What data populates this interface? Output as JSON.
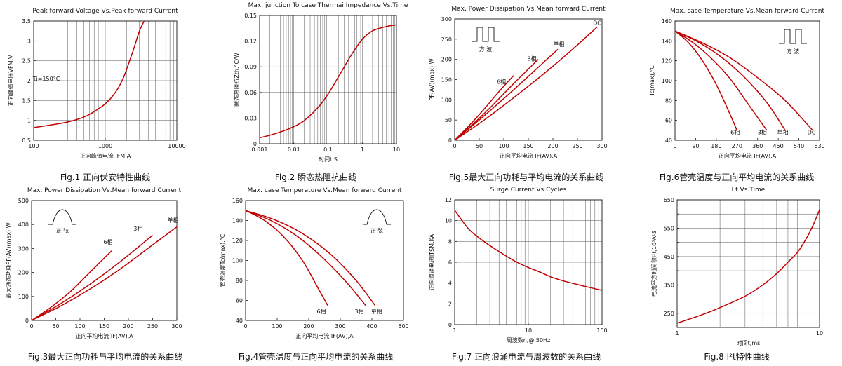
{
  "colors": {
    "curve": "#c00000",
    "axis": "#111111",
    "grid": "#555555"
  },
  "chart_data": [
    {
      "id": "fig1",
      "type": "line",
      "title": "Peak forward Voltage Vs.Peak forward Current",
      "caption": "Fig.1 正向伏安特性曲线",
      "xlabel": "正向峰值电流 IFM,A",
      "ylabel": "正向峰值电压VFM,V",
      "xscale": "log",
      "xlim": [
        100,
        10000
      ],
      "ylim": [
        0.5,
        3.5
      ],
      "xticks": [
        100,
        1000,
        10000
      ],
      "xtick_labels": [
        "100",
        "1000",
        "10000"
      ],
      "yticks": [
        0.5,
        1,
        1.5,
        2,
        2.5,
        3,
        3.5
      ],
      "ytick_labels": [
        "0.5",
        "1",
        "1.5",
        "2",
        "2.5",
        "3",
        "3.5"
      ],
      "grid": true,
      "annotations": [
        {
          "text": "Tj=150°C",
          "x": 150,
          "y": 2.0
        }
      ],
      "series": [
        {
          "x": [
            100,
            200,
            300,
            400,
            500,
            600,
            700,
            800,
            900,
            1000,
            1200,
            1500,
            1800,
            2000,
            2500,
            3000,
            3500
          ],
          "y": [
            0.82,
            0.9,
            0.96,
            1.02,
            1.08,
            1.15,
            1.22,
            1.29,
            1.35,
            1.42,
            1.56,
            1.8,
            2.08,
            2.3,
            2.8,
            3.25,
            3.5
          ]
        }
      ]
    },
    {
      "id": "fig2",
      "type": "line",
      "title": "Max. junction To case Thermai Impedance Vs.Time",
      "caption": "Fig.2 瞬态热阻抗曲线",
      "xlabel": "时间t,S",
      "ylabel": "瞬态热阻抗Zth,°C/W",
      "xscale": "log",
      "xlim": [
        0.001,
        10
      ],
      "ylim": [
        0,
        0.15
      ],
      "xticks": [
        0.001,
        0.01,
        0.1,
        1,
        10
      ],
      "xtick_labels": [
        "0.001",
        "0.01",
        "0.1",
        "1",
        "10"
      ],
      "yticks": [
        0,
        0.03,
        0.06,
        0.09,
        0.12,
        0.15
      ],
      "ytick_labels": [
        "0",
        "0.03",
        "0.06",
        "0.09",
        "0.12",
        "0.15"
      ],
      "grid": true,
      "annotations": [],
      "series": [
        {
          "x": [
            0.001,
            0.002,
            0.005,
            0.01,
            0.02,
            0.05,
            0.1,
            0.2,
            0.5,
            1,
            2,
            5,
            10
          ],
          "y": [
            0.007,
            0.01,
            0.015,
            0.02,
            0.027,
            0.042,
            0.058,
            0.078,
            0.105,
            0.122,
            0.132,
            0.137,
            0.139
          ]
        }
      ]
    },
    {
      "id": "fig5",
      "type": "line",
      "title": "Max. Power Dissipation Vs.Mean forward Current",
      "caption": "Fig.5最大正向功耗与平均电流的关系曲线",
      "xlabel": "正向平均电流 IF(AV),A",
      "ylabel": "PF(AV)(max),W",
      "xscale": "linear",
      "xlim": [
        0,
        300
      ],
      "ylim": [
        0,
        300
      ],
      "xticks": [
        0,
        50,
        100,
        150,
        200,
        250,
        300
      ],
      "xtick_labels": [
        "0",
        "50",
        "100",
        "150",
        "200",
        "250",
        "300"
      ],
      "yticks": [
        0,
        50,
        100,
        150,
        200,
        250,
        300
      ],
      "ytick_labels": [
        "0",
        "50",
        "100",
        "150",
        "200",
        "250",
        "300"
      ],
      "grid": false,
      "wave": "square",
      "wave_label": "方  波",
      "annotations": [
        {
          "text": "DC",
          "x": 290,
          "y": 285
        },
        {
          "text": "单相",
          "x": 212,
          "y": 232
        },
        {
          "text": "3相",
          "x": 157,
          "y": 197
        },
        {
          "text": "6相",
          "x": 95,
          "y": 140
        }
      ],
      "series": [
        {
          "name": "6相",
          "x": [
            0,
            30,
            60,
            90,
            120
          ],
          "y": [
            0,
            37,
            77,
            120,
            160
          ]
        },
        {
          "name": "3相",
          "x": [
            0,
            40,
            80,
            120,
            170
          ],
          "y": [
            0,
            43,
            90,
            140,
            200
          ]
        },
        {
          "name": "单相",
          "x": [
            0,
            50,
            100,
            150,
            210
          ],
          "y": [
            0,
            50,
            103,
            158,
            225
          ]
        },
        {
          "name": "DC",
          "x": [
            0,
            60,
            120,
            180,
            240,
            290
          ],
          "y": [
            0,
            50,
            105,
            163,
            225,
            280
          ]
        }
      ]
    },
    {
      "id": "fig6",
      "type": "line",
      "title": "Max. case Temperature Vs.Mean forward Current",
      "caption": "Fig.6管壳温度与正向平均电流的关系曲线",
      "xlabel": "正向平均电流 IF(AV),A",
      "ylabel": "Tc(max),°C",
      "xscale": "linear",
      "xlim": [
        0,
        630
      ],
      "ylim": [
        40,
        160
      ],
      "xticks": [
        0,
        90,
        180,
        270,
        360,
        450,
        540,
        630
      ],
      "xtick_labels": [
        "0",
        "90",
        "180",
        "270",
        "360",
        "450",
        "540",
        "630"
      ],
      "yticks": [
        40,
        60,
        80,
        100,
        120,
        140,
        160
      ],
      "ytick_labels": [
        "40",
        "60",
        "80",
        "100",
        "120",
        "140",
        "160"
      ],
      "grid": false,
      "wave": "square",
      "wave_label": "方  波",
      "annotations": [
        {
          "text": "6相",
          "x": 262,
          "y": 46
        },
        {
          "text": "3相",
          "x": 380,
          "y": 46
        },
        {
          "text": "单相",
          "x": 470,
          "y": 46
        },
        {
          "text": "DC",
          "x": 595,
          "y": 46
        }
      ],
      "series": [
        {
          "name": "6相",
          "x": [
            0,
            60,
            120,
            180,
            240,
            270
          ],
          "y": [
            150,
            138,
            120,
            96,
            66,
            50
          ]
        },
        {
          "name": "3相",
          "x": [
            0,
            80,
            160,
            240,
            320,
            400
          ],
          "y": [
            150,
            138,
            122,
            102,
            76,
            50
          ]
        },
        {
          "name": "单相",
          "x": [
            0,
            100,
            200,
            300,
            400,
            480
          ],
          "y": [
            150,
            139,
            124,
            104,
            78,
            50
          ]
        },
        {
          "name": "DC",
          "x": [
            0,
            120,
            240,
            360,
            480,
            600
          ],
          "y": [
            150,
            138,
            123,
            103,
            80,
            50
          ]
        }
      ]
    },
    {
      "id": "fig3",
      "type": "line",
      "title": "Max. Power Dissipation Vs.Mean forward Current",
      "caption": "Fig.3最大正向功耗与平均电流的关系曲线",
      "xlabel": "正向平均电流 IF(AV),A",
      "ylabel": "最大通态功耗PF(AV)(max),W",
      "xscale": "linear",
      "xlim": [
        0,
        300
      ],
      "ylim": [
        0,
        500
      ],
      "xticks": [
        0,
        50,
        100,
        150,
        200,
        250,
        300
      ],
      "xtick_labels": [
        "0",
        "50",
        "100",
        "150",
        "200",
        "250",
        "300"
      ],
      "yticks": [
        0,
        100,
        200,
        300,
        400,
        500
      ],
      "ytick_labels": [
        "0",
        "100",
        "200",
        "300",
        "400",
        "500"
      ],
      "grid": false,
      "wave": "sine",
      "wave_label": "正  弦",
      "annotations": [
        {
          "text": "单相",
          "x": 292,
          "y": 410
        },
        {
          "text": "3相",
          "x": 220,
          "y": 375
        },
        {
          "text": "6相",
          "x": 158,
          "y": 318
        }
      ],
      "series": [
        {
          "name": "6相",
          "x": [
            0,
            40,
            80,
            120,
            165
          ],
          "y": [
            0,
            55,
            120,
            200,
            290
          ]
        },
        {
          "name": "3相",
          "x": [
            0,
            60,
            120,
            180,
            250
          ],
          "y": [
            0,
            70,
            150,
            240,
            355
          ]
        },
        {
          "name": "单相",
          "x": [
            0,
            60,
            120,
            180,
            240,
            300
          ],
          "y": [
            0,
            60,
            130,
            210,
            300,
            390
          ]
        }
      ]
    },
    {
      "id": "fig4",
      "type": "line",
      "title": "Max. case Temperature Vs.Mean forward Current",
      "caption": "Fig.4管壳温度与正向平均电流的关系曲线",
      "xlabel": "正向平均电流 IF(AV),A",
      "ylabel": "管壳温度Tc(max),°C",
      "xscale": "linear",
      "xlim": [
        0,
        500
      ],
      "ylim": [
        40,
        160
      ],
      "xticks": [
        0,
        100,
        200,
        300,
        400,
        500
      ],
      "xtick_labels": [
        "0",
        "100",
        "200",
        "300",
        "400",
        "500"
      ],
      "yticks": [
        40,
        60,
        80,
        100,
        120,
        140,
        160
      ],
      "ytick_labels": [
        "40",
        "60",
        "80",
        "100",
        "120",
        "140",
        "160"
      ],
      "grid": false,
      "wave": "sine",
      "wave_label": "正  弦",
      "annotations": [
        {
          "text": "6相",
          "x": 240,
          "y": 47
        },
        {
          "text": "3相",
          "x": 360,
          "y": 47
        },
        {
          "text": "单相",
          "x": 415,
          "y": 47
        }
      ],
      "series": [
        {
          "name": "6相",
          "x": [
            0,
            60,
            120,
            180,
            230,
            260
          ],
          "y": [
            150,
            140,
            124,
            100,
            72,
            55
          ]
        },
        {
          "name": "3相",
          "x": [
            0,
            80,
            160,
            240,
            320,
            380
          ],
          "y": [
            150,
            140,
            125,
            104,
            78,
            55
          ]
        },
        {
          "name": "单相",
          "x": [
            0,
            90,
            180,
            270,
            350,
            410
          ],
          "y": [
            150,
            141,
            127,
            106,
            80,
            55
          ]
        }
      ]
    },
    {
      "id": "fig7",
      "type": "line",
      "title": "Surge Current Vs.Cycles",
      "caption": "Fig.7 正向浪涌电流与周波数的关系曲线",
      "xlabel": "周波数n,@ 50Hz",
      "ylabel": "正向浪涌电流ITSM,KA",
      "xscale": "log",
      "xlim": [
        1,
        100
      ],
      "ylim": [
        0,
        12
      ],
      "xticks": [
        1,
        10,
        100
      ],
      "xtick_labels": [
        "1",
        "10",
        "100"
      ],
      "yticks": [
        0,
        2,
        4,
        6,
        8,
        10,
        12
      ],
      "ytick_labels": [
        "0",
        "2",
        "4",
        "6",
        "8",
        "10",
        "12"
      ],
      "grid": true,
      "annotations": [],
      "series": [
        {
          "x": [
            1,
            1.5,
            2,
            3,
            5,
            7,
            10,
            15,
            20,
            30,
            50,
            70,
            100
          ],
          "y": [
            11,
            9.3,
            8.5,
            7.6,
            6.6,
            6.0,
            5.5,
            5.0,
            4.6,
            4.2,
            3.8,
            3.55,
            3.3
          ]
        }
      ]
    },
    {
      "id": "fig8",
      "type": "line",
      "title": "I t Vs.Time",
      "caption": "Fig.8 I²t特性曲线",
      "xlabel": "时间t,ms",
      "ylabel": "电流平方时间积I²t,10³A²S",
      "xscale": "log",
      "xlim": [
        1,
        10
      ],
      "ylim": [
        200,
        650
      ],
      "xticks": [
        1,
        10
      ],
      "xtick_labels": [
        "1",
        "10"
      ],
      "yticks": [
        200,
        250,
        300,
        350,
        400,
        450,
        500,
        550,
        600,
        650
      ],
      "ytick_labels": [
        "",
        "250",
        "",
        "350",
        "",
        "450",
        "",
        "550",
        "",
        "650"
      ],
      "grid": true,
      "annotations": [],
      "series": [
        {
          "x": [
            1,
            1.5,
            2,
            3,
            4,
            5,
            6,
            7,
            8,
            9,
            10
          ],
          "y": [
            215,
            245,
            270,
            310,
            350,
            390,
            430,
            465,
            510,
            560,
            615
          ]
        }
      ]
    }
  ]
}
